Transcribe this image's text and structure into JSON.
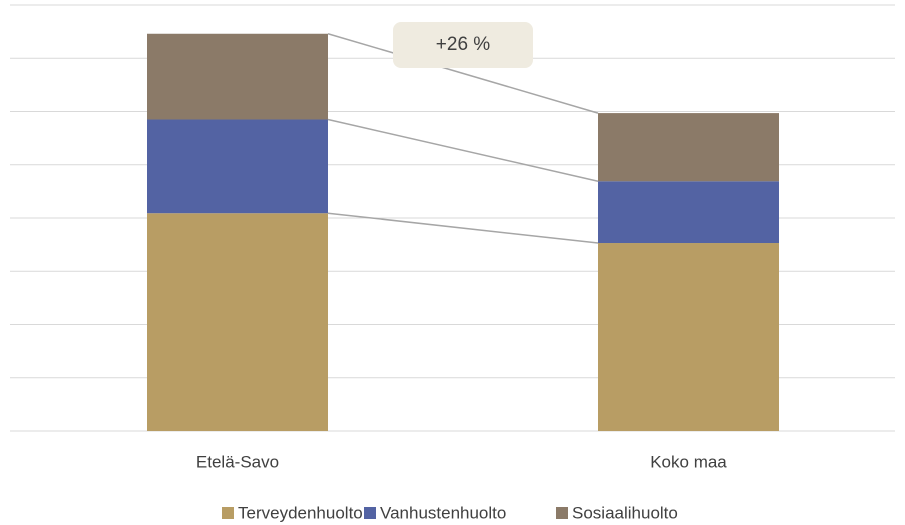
{
  "chart_data": {
    "type": "stacked_bar",
    "categories": [
      "Etelä-Savo",
      "Koko maa"
    ],
    "series": [
      {
        "name": "Terveydenhuolto",
        "color": "#b89d64",
        "values": [
          4.09,
          3.53
        ]
      },
      {
        "name": "Vanhustenhuolto",
        "color": "#5363a3",
        "values": [
          1.76,
          1.16
        ]
      },
      {
        "name": "Sosiaalihuolto",
        "color": "#8b7a68",
        "values": [
          1.61,
          1.28
        ]
      }
    ],
    "ylim": [
      0,
      8
    ],
    "yticks": [
      0,
      1,
      2,
      3,
      4,
      5,
      6,
      7,
      8
    ],
    "grid": true,
    "annotation": "+26 %",
    "legend": "bottom"
  }
}
